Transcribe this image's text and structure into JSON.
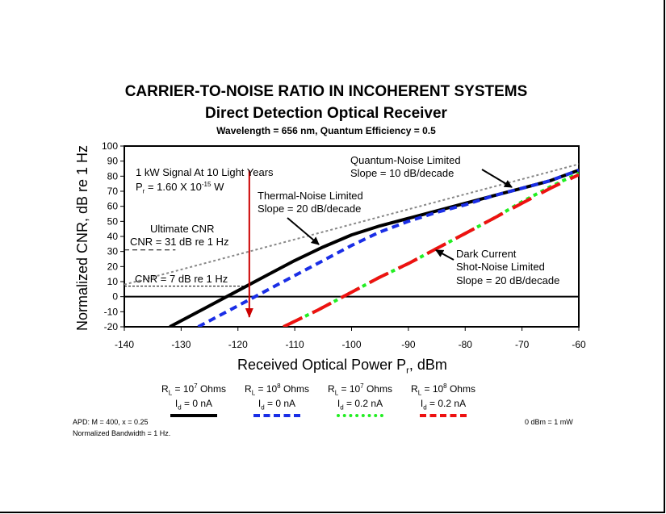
{
  "title": "CARRIER-TO-NOISE RATIO IN INCOHERENT SYSTEMS",
  "subtitle": "Direct Detection Optical Receiver",
  "parameters": "Wavelength = 656 nm, Quantum Efficiency = 0.5",
  "footnotes": {
    "apd": "APD: M = 400, x = 0.25",
    "bandwidth": "Normalized Bandwidth = 1 Hz.",
    "reference": "0 dBm = 1 mW"
  },
  "chart_data": {
    "type": "line",
    "title": "CARRIER-TO-NOISE RATIO IN INCOHERENT SYSTEMS",
    "xlabel": "Received Optical Power Pr, dBm",
    "ylabel": "Normalized CNR, dB re 1 Hz",
    "xlim": [
      -140,
      -60
    ],
    "ylim": [
      -20,
      100
    ],
    "x_ticks": [
      -140,
      -130,
      -120,
      -110,
      -100,
      -90,
      -80,
      -70,
      -60
    ],
    "y_ticks": [
      -20,
      -10,
      0,
      10,
      20,
      30,
      40,
      50,
      60,
      70,
      80,
      90,
      100
    ],
    "grid": false,
    "series": [
      {
        "name": "RL = 10^7 Ohms, Id = 0 nA",
        "color": "#000000",
        "style": "solid",
        "x": [
          -132,
          -125,
          -120,
          -115,
          -110,
          -105,
          -100,
          -95,
          -90,
          -85,
          -80,
          -75,
          -70,
          -65,
          -60
        ],
        "y": [
          -20,
          -6,
          4,
          14,
          24,
          33,
          41,
          47,
          52,
          57,
          62,
          67,
          72,
          77,
          84
        ]
      },
      {
        "name": "RL = 10^8 Ohms, Id = 0 nA",
        "color": "#1a2ee6",
        "style": "dashed",
        "x": [
          -127,
          -120,
          -115,
          -110,
          -105,
          -100,
          -95,
          -90,
          -85,
          -80,
          -75,
          -70,
          -65,
          -60
        ],
        "y": [
          -20,
          -6,
          4,
          14,
          24,
          34,
          43,
          50,
          56,
          61,
          67,
          72,
          77,
          84
        ]
      },
      {
        "name": "RL = 10^7 Ohms, Id = 0.2 nA",
        "color": "#22ee22",
        "style": "dotted",
        "x": [
          -112,
          -106,
          -100,
          -95,
          -90,
          -85,
          -80,
          -75,
          -70,
          -65,
          -60
        ],
        "y": [
          -20,
          -9,
          3,
          13,
          22,
          32,
          42,
          52,
          63,
          73,
          82
        ]
      },
      {
        "name": "RL = 10^8 Ohms, Id = 0.2 nA",
        "color": "#ee1111",
        "style": "long-dash",
        "x": [
          -112,
          -106,
          -100,
          -95,
          -90,
          -85,
          -80,
          -75,
          -70,
          -65,
          -60
        ],
        "y": [
          -20,
          -9,
          3,
          13,
          22,
          32,
          42,
          52,
          62,
          72,
          81
        ]
      },
      {
        "name": "Quantum-noise limit",
        "color": "#888888",
        "style": "dotted",
        "x": [
          -140,
          -60
        ],
        "y": [
          8,
          88
        ]
      }
    ],
    "reference_lines": {
      "ultimate_cnr": 31,
      "threshold_cnr": 7,
      "zero_db": 0,
      "signal_power": -118
    },
    "annotations": {
      "signal_line1": "1 kW Signal At 10 Light Years",
      "signal_pr": "P",
      "signal_pr_sub": "r",
      "signal_value": " = 1.60 X 10",
      "signal_exp": "-15",
      "signal_unit": " W",
      "thermal1": "Thermal-Noise Limited",
      "thermal2": "Slope = 20 dB/decade",
      "quantum1": "Quantum-Noise Limited",
      "quantum2": "Slope = 10 dB/decade",
      "dark1": "Dark Current",
      "dark2": "Shot-Noise Limited",
      "dark3": "Slope = 20 dB/decade",
      "ultimate1": "Ultimate CNR",
      "ultimate2": "CNR = 31 dB re 1 Hz",
      "threshold": "CNR = 7 dB re 1 Hz"
    }
  },
  "legend": [
    {
      "rl_base": "R",
      "rl_sub": "L",
      "rl_eq": " = 10",
      "rl_exp": "7",
      "rl_unit": " Ohms",
      "id_base": "I",
      "id_sub": "d",
      "id_val": " = 0 nA",
      "color": "#000000",
      "style": "solid"
    },
    {
      "rl_base": "R",
      "rl_sub": "L",
      "rl_eq": " = 10",
      "rl_exp": "8",
      "rl_unit": " Ohms",
      "id_base": "I",
      "id_sub": "d",
      "id_val": " = 0 nA",
      "color": "#1a2ee6",
      "style": "dashed"
    },
    {
      "rl_base": "R",
      "rl_sub": "L",
      "rl_eq": " = 10",
      "rl_exp": "7",
      "rl_unit": " Ohms",
      "id_base": "I",
      "id_sub": "d",
      "id_val": " = 0.2 nA",
      "color": "#22ee22",
      "style": "dotted"
    },
    {
      "rl_base": "R",
      "rl_sub": "L",
      "rl_eq": " = 10",
      "rl_exp": "8",
      "rl_unit": " Ohms",
      "id_base": "I",
      "id_sub": "d",
      "id_val": " = 0.2 nA",
      "color": "#ee1111",
      "style": "long-dash"
    }
  ],
  "axis_text": {
    "xlabel_main": "Received Optical Power P",
    "xlabel_sub": "r",
    "xlabel_tail": ", dBm",
    "ylabel": "Normalized CNR, dB re 1 Hz"
  }
}
